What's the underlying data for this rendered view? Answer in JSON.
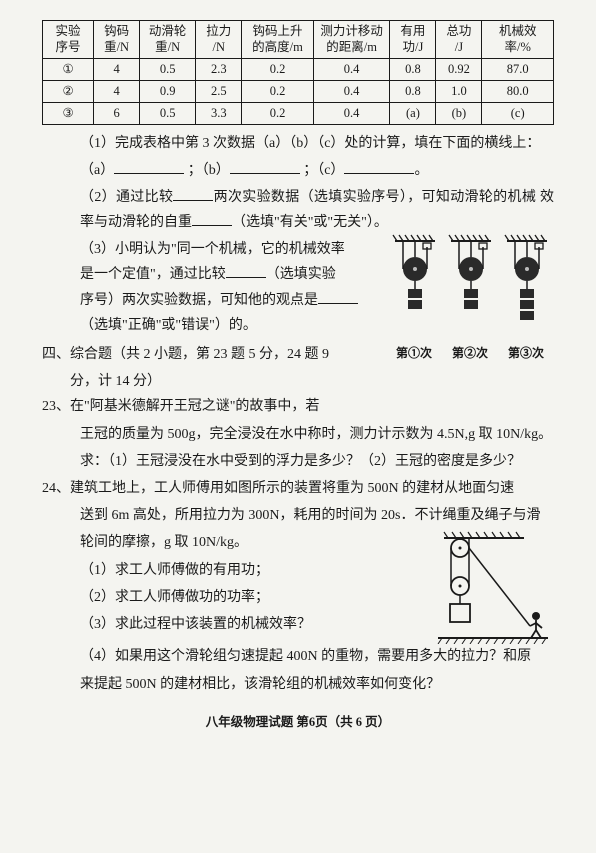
{
  "table": {
    "headers": [
      "实验\n序号",
      "钩码\n重/N",
      "动滑轮\n重/N",
      "拉力\n/N",
      "钩码上升\n的高度/m",
      "测力计移动\n的距离/m",
      "有用\n功/J",
      "总功\n/J",
      "机械效\n率/%"
    ],
    "rows": [
      [
        "①",
        "4",
        "0.5",
        "2.3",
        "0.2",
        "0.4",
        "0.8",
        "0.92",
        "87.0"
      ],
      [
        "②",
        "4",
        "0.9",
        "2.5",
        "0.2",
        "0.4",
        "0.8",
        "1.0",
        "80.0"
      ],
      [
        "③",
        "6",
        "0.5",
        "3.3",
        "0.2",
        "0.4",
        "(a)",
        "(b)",
        "(c)"
      ]
    ],
    "col_widths": [
      "10%",
      "9%",
      "11%",
      "9%",
      "14%",
      "15%",
      "9%",
      "9%",
      "14%"
    ]
  },
  "q1": {
    "line1": "（1）完成表格中第 3 次数据（a）（b）（c）处的计算，填在下面的横线上：",
    "a": "（a）",
    "b": "；（b）",
    "c": "；（c）",
    "end": "。"
  },
  "q2": {
    "line1": "（2）通过比较",
    "line2": "两次实验数据（选填实验序号），可知动滑轮的机械",
    "line3": "效率与动滑轮的自重",
    "line4": "（选填\"有关\"或\"无关\"）。"
  },
  "q3": {
    "line1": "（3）小明认为\"同一个机械，它的机械效率",
    "line2": "是一个定值\"，通过比较",
    "line3": "（选填实验",
    "line4": "序号）两次实验数据，可知他的观点是",
    "line5": "（选填\"正确\"或\"错误\"）的。"
  },
  "pulley_labels": [
    "第①次",
    "第②次",
    "第③次"
  ],
  "section4": {
    "header": "四、综合题（共 2 小题，第 23 题 5 分，24 题 9",
    "header2": "分，计 14 分）"
  },
  "q23": {
    "num": "23、",
    "line1": "在\"阿基米德解开王冠之谜\"的故事中，若",
    "line2": "王冠的质量为 500g，完全浸没在水中称时，测力计示数为 4.5N,g 取 10N/kg。",
    "line3": "求：（1）王冠浸没在水中受到的浮力是多少？（2）王冠的密度是多少？"
  },
  "q24": {
    "num": "24、",
    "line1": "建筑工地上，工人师傅用如图所示的装置将重为 500N 的建材从地面匀速",
    "line2": "送到 6m 高处，所用拉力为 300N，耗用的时间为 20s．不计绳重及绳子与滑",
    "line3": "轮间的摩擦，g 取 10N/kg。",
    "sub1": "（1）求工人师傅做的有用功；",
    "sub2": "（2）求工人师傅做功的功率；",
    "sub3": "（3）求此过程中该装置的机械效率？",
    "sub4a": "（4）如果用这个滑轮组匀速提起 400N 的重物，需要用多大的拉力？和原",
    "sub4b": "来提起 500N 的建材相比，该滑轮组的机械效率如何变化？"
  },
  "footer": "八年级物理试题  第6页（共 6 页）",
  "colors": {
    "text": "#1a1a1a",
    "bg": "#f4f4f0",
    "pulley_fill": "#2a2a2a"
  }
}
